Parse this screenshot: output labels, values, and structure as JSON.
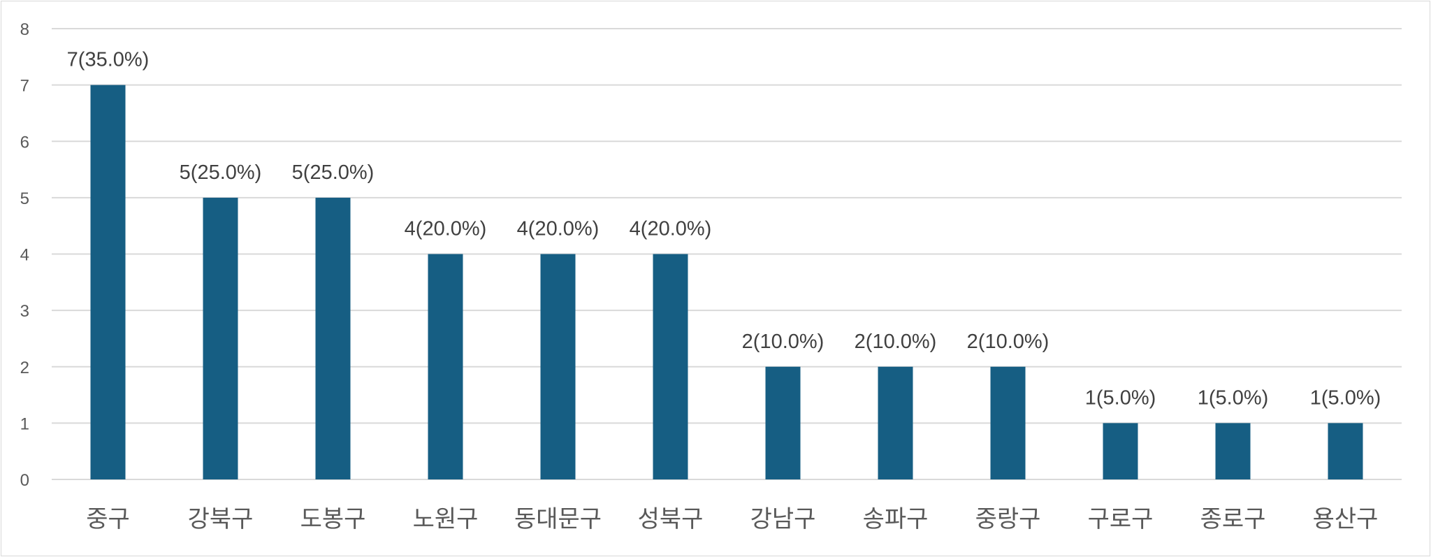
{
  "chart_data": {
    "type": "bar",
    "title": "",
    "xlabel": "",
    "ylabel": "",
    "ylim": [
      0,
      8
    ],
    "yticks": [
      0,
      1,
      2,
      3,
      4,
      5,
      6,
      7,
      8
    ],
    "grid": true,
    "legend": "none",
    "categories": [
      "중구",
      "강북구",
      "도봉구",
      "노원구",
      "동대문구",
      "성북구",
      "강남구",
      "송파구",
      "중랑구",
      "구로구",
      "종로구",
      "용산구"
    ],
    "values": [
      7,
      5,
      5,
      4,
      4,
      4,
      2,
      2,
      2,
      1,
      1,
      1
    ],
    "data_labels": [
      "7(35.0%)",
      "5(25.0%)",
      "5(25.0%)",
      "4(20.0%)",
      "4(20.0%)",
      "4(20.0%)",
      "2(10.0%)",
      "2(10.0%)",
      "2(10.0%)",
      "1(5.0%)",
      "1(5.0%)",
      "1(5.0%)"
    ],
    "colors": {
      "bar": "#165e83",
      "grid": "#d9d9d9"
    }
  }
}
